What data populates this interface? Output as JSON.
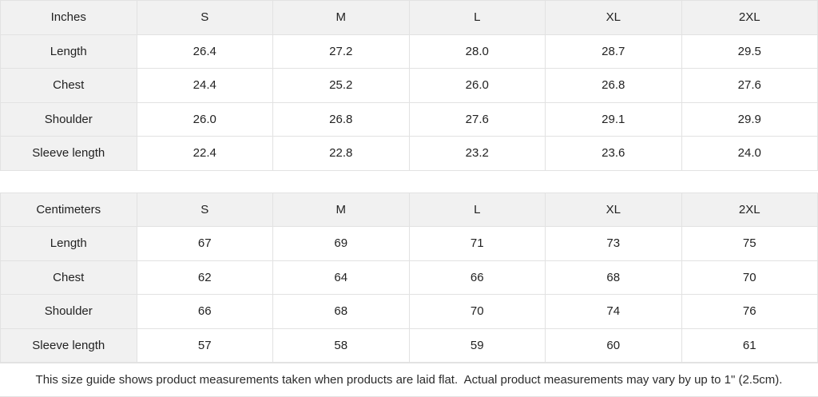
{
  "colors": {
    "header_bg": "#f1f1f1",
    "border": "#e2e2e2",
    "text": "#222222",
    "background": "#ffffff"
  },
  "tables": [
    {
      "unit_label": "Inches",
      "size_headers": [
        "S",
        "M",
        "L",
        "XL",
        "2XL"
      ],
      "rows": [
        {
          "label": "Length",
          "values": [
            "26.4",
            "27.2",
            "28.0",
            "28.7",
            "29.5"
          ]
        },
        {
          "label": "Chest",
          "values": [
            "24.4",
            "25.2",
            "26.0",
            "26.8",
            "27.6"
          ]
        },
        {
          "label": "Shoulder",
          "values": [
            "26.0",
            "26.8",
            "27.6",
            "29.1",
            "29.9"
          ]
        },
        {
          "label": "Sleeve length",
          "values": [
            "22.4",
            "22.8",
            "23.2",
            "23.6",
            "24.0"
          ]
        }
      ]
    },
    {
      "unit_label": "Centimeters",
      "size_headers": [
        "S",
        "M",
        "L",
        "XL",
        "2XL"
      ],
      "rows": [
        {
          "label": "Length",
          "values": [
            "67",
            "69",
            "71",
            "73",
            "75"
          ]
        },
        {
          "label": "Chest",
          "values": [
            "62",
            "64",
            "66",
            "68",
            "70"
          ]
        },
        {
          "label": "Shoulder",
          "values": [
            "66",
            "68",
            "70",
            "74",
            "76"
          ]
        },
        {
          "label": "Sleeve length",
          "values": [
            "57",
            "58",
            "59",
            "60",
            "61"
          ]
        }
      ]
    }
  ],
  "footer_note": "This size guide shows product measurements taken when products are laid flat.  Actual product measurements may vary by up to 1\" (2.5cm)."
}
